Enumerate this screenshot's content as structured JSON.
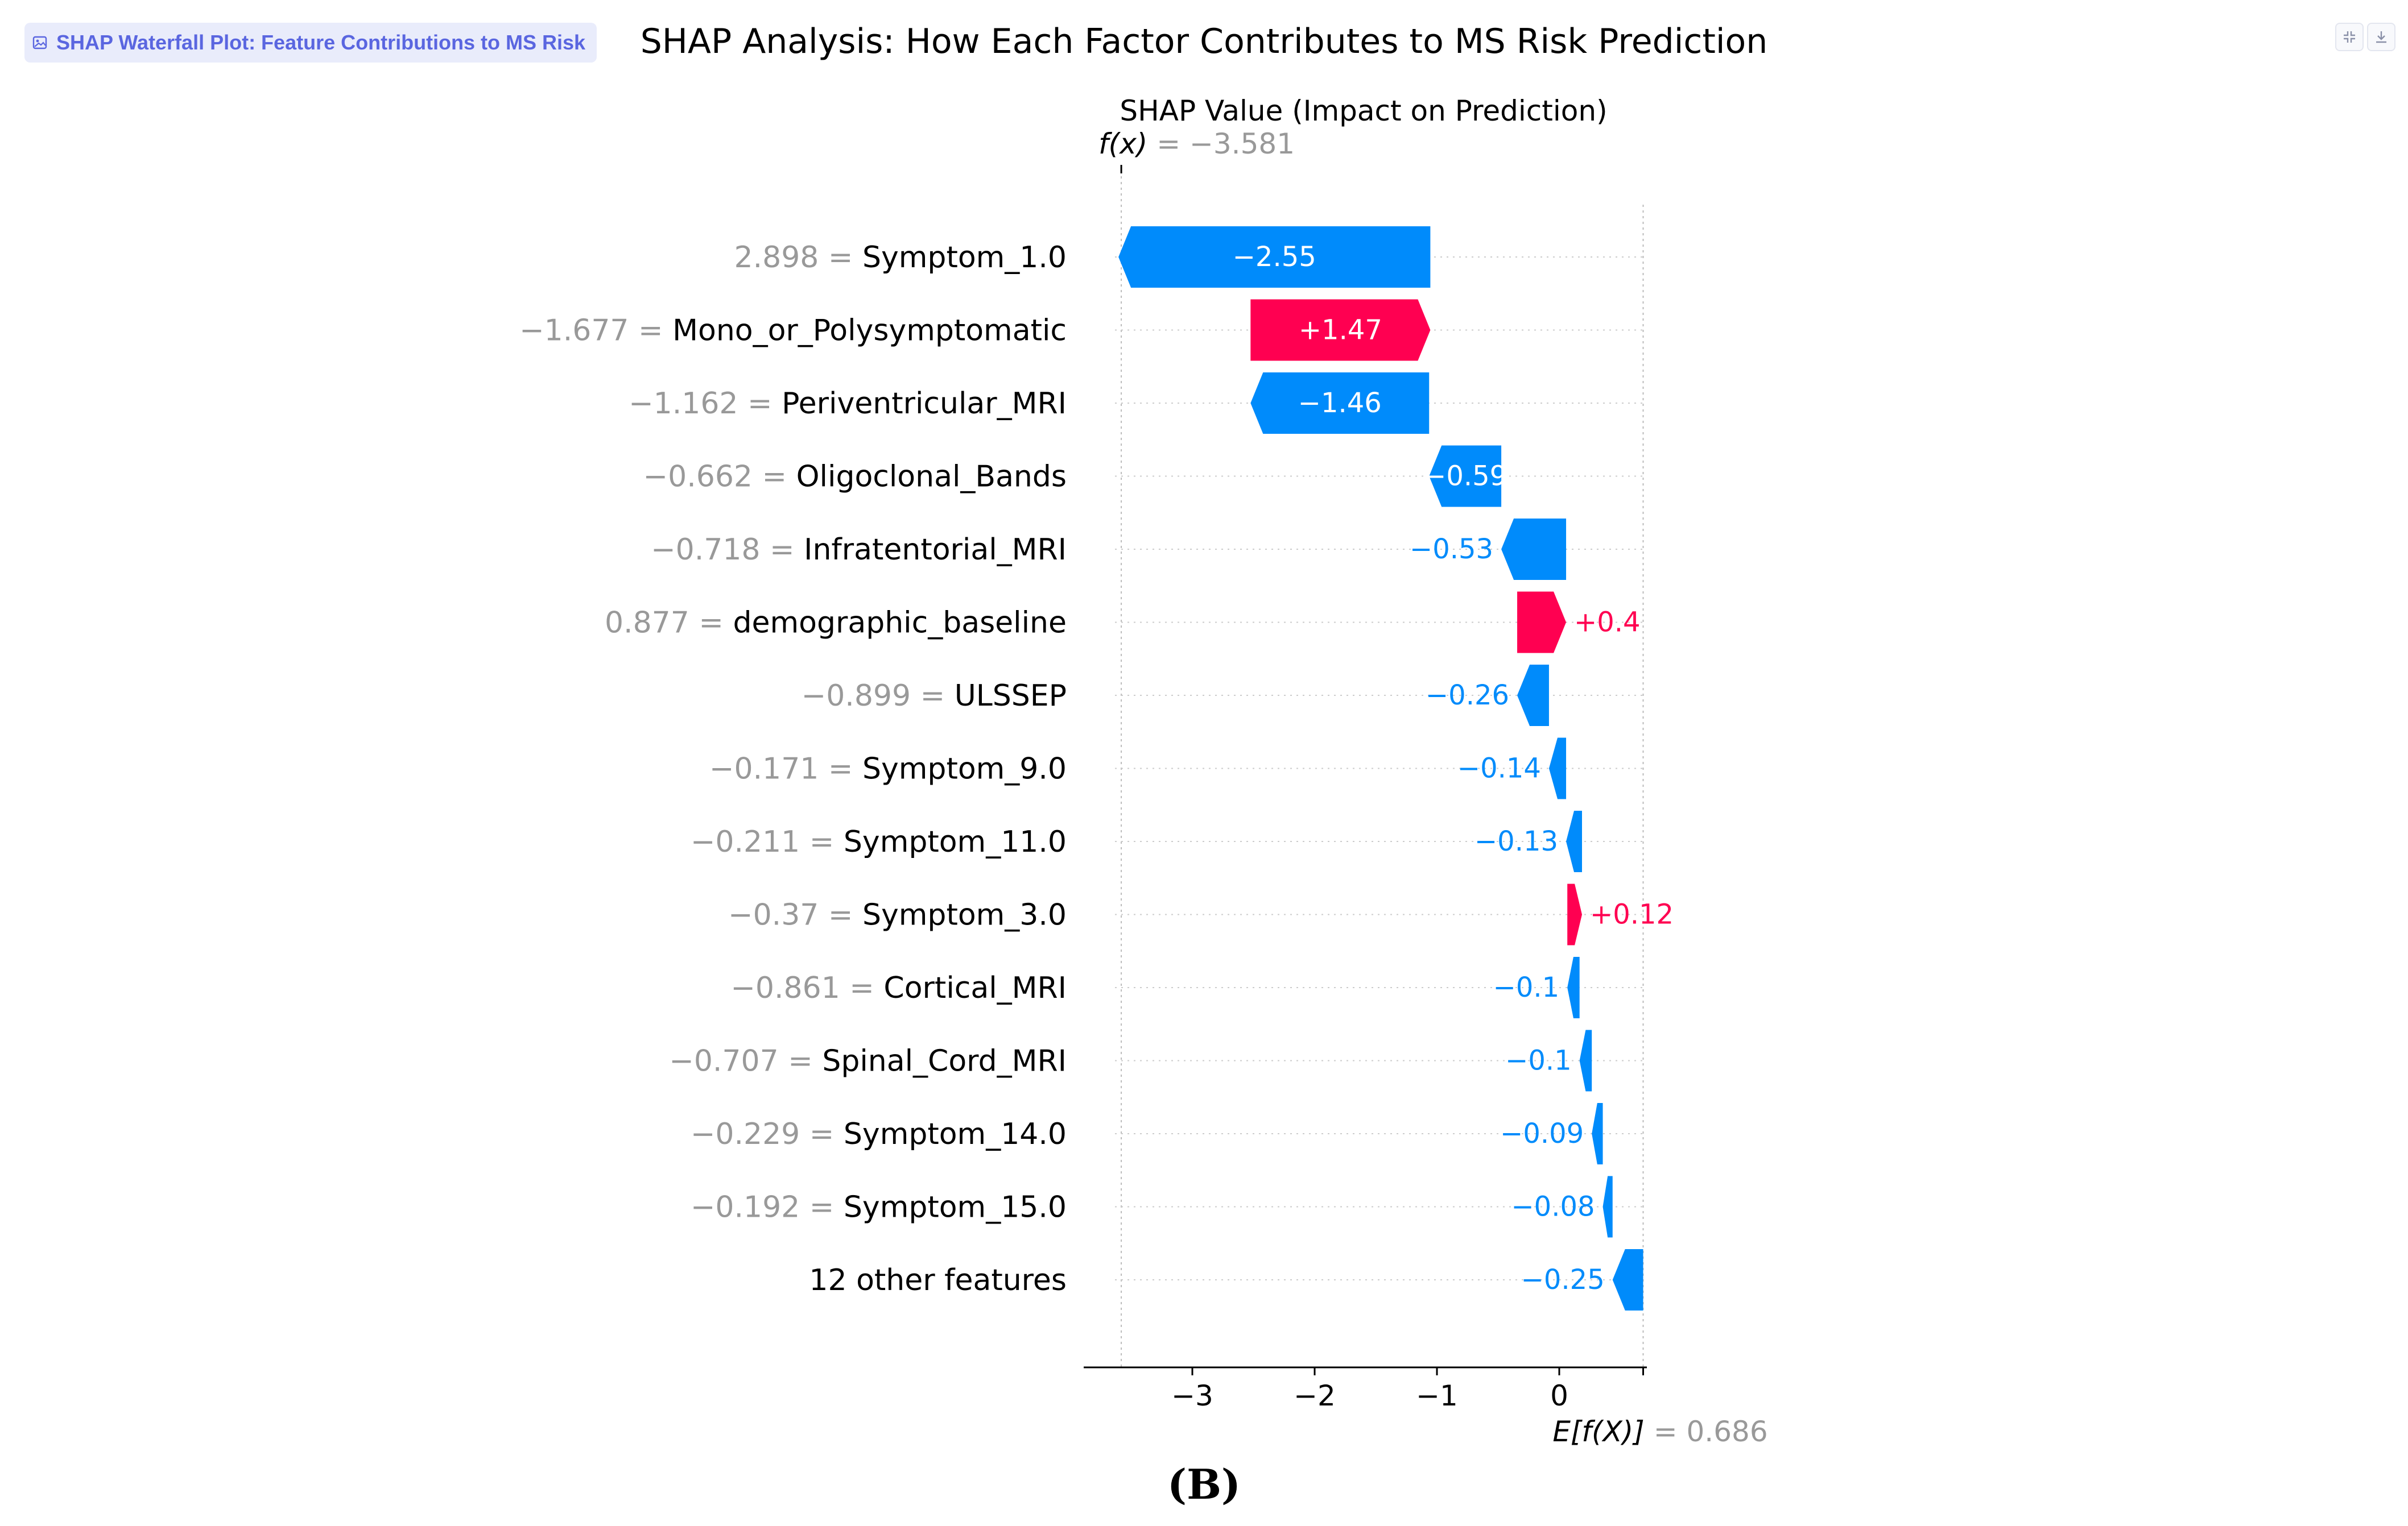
{
  "header": {
    "badge_label": "SHAP Waterfall Plot: Feature Contributions to MS Risk",
    "badge_icon": "image-icon",
    "title": "SHAP Analysis: How Each Factor Contributes to MS Risk Prediction",
    "tool_icons": [
      "collapse-icon",
      "download-icon"
    ]
  },
  "figure_label": "(B)",
  "chart_data": {
    "type": "waterfall",
    "title": "SHAP Value (Impact on Prediction)",
    "fx_label": "f(x)",
    "fx_value": "= −3.581",
    "fx": -3.581,
    "base_label": "E[f(X)]",
    "base_value_text": "= 0.686",
    "base_value": 0.686,
    "xlim": [
      -3.75,
      0.7
    ],
    "xticks": [
      -3,
      -2,
      -1,
      0
    ],
    "xtick_labels": [
      "−3",
      "−2",
      "−1",
      "0"
    ],
    "colors": {
      "positive": "#ff0051",
      "negative": "#008bfb",
      "feature_value": "#999999",
      "gridline": "#cccccc"
    },
    "features": [
      {
        "value_text": "2.898",
        "name": "Symptom_1.0",
        "shap": -2.55,
        "shap_label": "−2.55"
      },
      {
        "value_text": "−1.677",
        "name": "Mono_or_Polysymptomatic",
        "shap": 1.47,
        "shap_label": "+1.47"
      },
      {
        "value_text": "−1.162",
        "name": "Periventricular_MRI",
        "shap": -1.46,
        "shap_label": "−1.46"
      },
      {
        "value_text": "−0.662",
        "name": "Oligoclonal_Bands",
        "shap": -0.59,
        "shap_label": "−0.59"
      },
      {
        "value_text": "−0.718",
        "name": "Infratentorial_MRI",
        "shap": -0.53,
        "shap_label": "−0.53"
      },
      {
        "value_text": "0.877",
        "name": "demographic_baseline",
        "shap": 0.4,
        "shap_label": "+0.4"
      },
      {
        "value_text": "−0.899",
        "name": "ULSSEP",
        "shap": -0.26,
        "shap_label": "−0.26"
      },
      {
        "value_text": "−0.171",
        "name": "Symptom_9.0",
        "shap": -0.14,
        "shap_label": "−0.14"
      },
      {
        "value_text": "−0.211",
        "name": "Symptom_11.0",
        "shap": -0.13,
        "shap_label": "−0.13"
      },
      {
        "value_text": "−0.37",
        "name": "Symptom_3.0",
        "shap": 0.12,
        "shap_label": "+0.12"
      },
      {
        "value_text": "−0.861",
        "name": "Cortical_MRI",
        "shap": -0.1,
        "shap_label": "−0.1"
      },
      {
        "value_text": "−0.707",
        "name": "Spinal_Cord_MRI",
        "shap": -0.1,
        "shap_label": "−0.1"
      },
      {
        "value_text": "−0.229",
        "name": "Symptom_14.0",
        "shap": -0.09,
        "shap_label": "−0.09"
      },
      {
        "value_text": "−0.192",
        "name": "Symptom_15.0",
        "shap": -0.08,
        "shap_label": "−0.08"
      },
      {
        "value_text": "",
        "name": "12 other features",
        "shap": -0.25,
        "shap_label": "−0.25"
      }
    ]
  }
}
